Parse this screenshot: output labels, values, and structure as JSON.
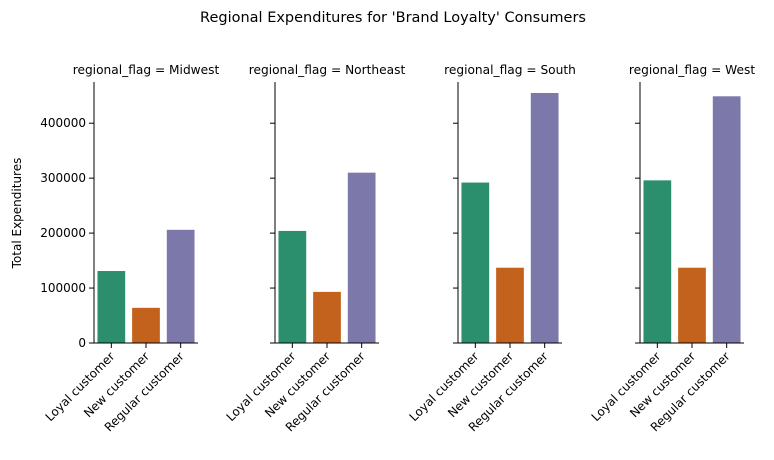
{
  "chart_data": {
    "type": "bar",
    "title": "Regional Expenditures for 'Brand Loyalty' Consumers",
    "ylabel": "Total Expenditures",
    "xlabel": "",
    "ylim": [
      0,
      475000
    ],
    "yticks": [
      0,
      100000,
      200000,
      300000,
      400000
    ],
    "categories": [
      "Loyal customer",
      "New customer",
      "Regular customer"
    ],
    "colors": [
      "#2b8f6e",
      "#c3621c",
      "#7c78aa"
    ],
    "grid": false,
    "facets": [
      {
        "title": "regional_flag = Midwest",
        "values": [
          131000,
          64000,
          206000
        ]
      },
      {
        "title": "regional_flag = Northeast",
        "values": [
          204000,
          93000,
          310000
        ]
      },
      {
        "title": "regional_flag = South",
        "values": [
          292000,
          137000,
          455000
        ]
      },
      {
        "title": "regional_flag = West",
        "values": [
          296000,
          137000,
          449000
        ]
      }
    ]
  }
}
